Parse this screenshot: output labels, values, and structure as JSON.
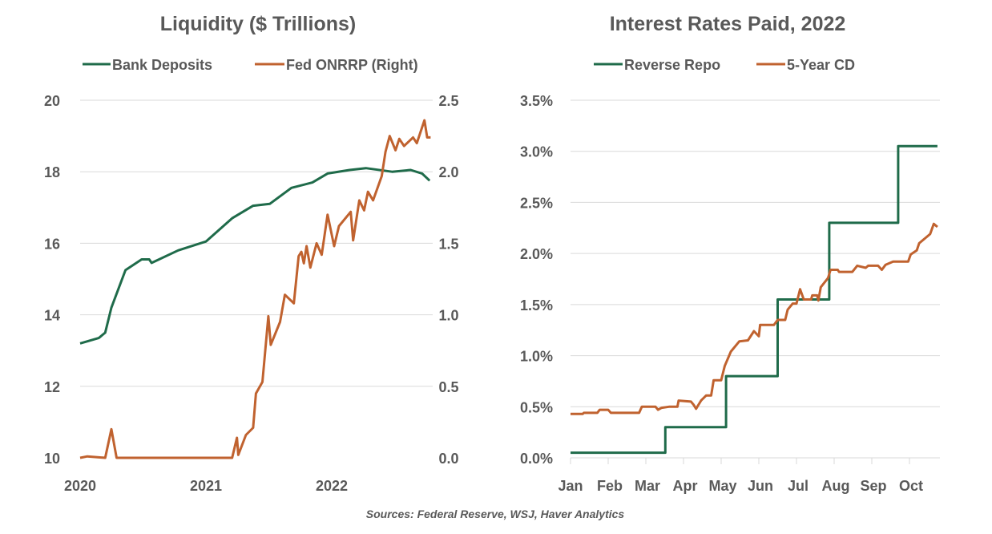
{
  "colors": {
    "green": "#1f6b4a",
    "orange": "#c0622f"
  },
  "source": "Sources: Federal Reserve, WSJ, Haver Analytics",
  "chart_data": [
    {
      "type": "line",
      "title": "Liquidity ($ Trillions)",
      "legend_placement": "top",
      "grid": true,
      "x_ticks": [
        "2020",
        "2021",
        "2022"
      ],
      "y_left": {
        "lim": [
          10,
          20
        ],
        "ticks": [
          "10",
          "12",
          "14",
          "16",
          "18",
          "20"
        ]
      },
      "y_right": {
        "lim": [
          0,
          2.5
        ],
        "ticks": [
          "0.0",
          "0.5",
          "1.0",
          "1.5",
          "2.0",
          "2.5"
        ]
      },
      "series": [
        {
          "name": "Bank Deposits",
          "axis": "left",
          "color": "#1f6b4a",
          "x": [
            "2020-01-01",
            "2020-02-24",
            "2020-03-14",
            "2020-04-01",
            "2020-05-12",
            "2020-06-28",
            "2020-07-20",
            "2020-07-27",
            "2020-10-12",
            "2021-01-01",
            "2021-03-18",
            "2021-05-18",
            "2021-07-05",
            "2021-09-06",
            "2021-11-06",
            "2021-12-20",
            "2022-02-22",
            "2022-04-10",
            "2022-06-25",
            "2022-08-18",
            "2022-09-20",
            "2022-10-12"
          ],
          "y": [
            13.2,
            13.35,
            13.5,
            14.2,
            15.25,
            15.55,
            15.55,
            15.45,
            15.8,
            16.05,
            16.7,
            17.05,
            17.1,
            17.55,
            17.7,
            17.95,
            18.05,
            18.1,
            18.0,
            18.05,
            17.95,
            17.75
          ]
        },
        {
          "name": "Fed ONRRP (Right)",
          "axis": "right",
          "color": "#c0622f",
          "x": [
            "2020-01-01",
            "2020-01-22",
            "2020-03-14",
            "2020-04-01",
            "2020-04-16",
            "2021-03-18",
            "2021-04-01",
            "2021-04-05",
            "2021-04-27",
            "2021-05-18",
            "2021-05-26",
            "2021-06-14",
            "2021-07-01",
            "2021-07-08",
            "2021-08-04",
            "2021-08-18",
            "2021-09-13",
            "2021-09-27",
            "2021-10-05",
            "2021-10-12",
            "2021-10-20",
            "2021-10-31",
            "2021-11-18",
            "2021-12-03",
            "2021-12-20",
            "2022-01-08",
            "2022-01-22",
            "2022-02-25",
            "2022-03-04",
            "2022-03-22",
            "2022-04-05",
            "2022-04-16",
            "2022-05-01",
            "2022-05-26",
            "2022-06-06",
            "2022-06-18",
            "2022-07-05",
            "2022-07-16",
            "2022-07-30",
            "2022-08-25",
            "2022-09-05",
            "2022-09-27",
            "2022-10-05",
            "2022-10-15"
          ],
          "y": [
            0,
            0.01,
            0,
            0.2,
            0,
            0,
            0.14,
            0.02,
            0.16,
            0.21,
            0.45,
            0.53,
            0.99,
            0.79,
            0.95,
            1.14,
            1.08,
            1.41,
            1.44,
            1.36,
            1.48,
            1.33,
            1.5,
            1.42,
            1.7,
            1.48,
            1.62,
            1.72,
            1.52,
            1.8,
            1.73,
            1.86,
            1.8,
            1.97,
            2.14,
            2.25,
            2.15,
            2.23,
            2.18,
            2.24,
            2.2,
            2.36,
            2.24,
            2.24
          ]
        }
      ]
    },
    {
      "type": "line",
      "title": "Interest Rates Paid, 2022",
      "legend_placement": "top",
      "grid": true,
      "x_ticks": [
        "Jan",
        "Feb",
        "Mar",
        "Apr",
        "May",
        "Jun",
        "Jul",
        "Aug",
        "Sep",
        "Oct"
      ],
      "y_left": {
        "lim": [
          0,
          3.5
        ],
        "ticks": [
          "0.0%",
          "0.5%",
          "1.0%",
          "1.5%",
          "2.0%",
          "2.5%",
          "3.0%",
          "3.5%"
        ]
      },
      "series": [
        {
          "name": "Reverse Repo",
          "color": "#1f6b4a",
          "step": true,
          "x": [
            "2022-01-01",
            "2022-03-17",
            "2022-05-05",
            "2022-06-16",
            "2022-07-28",
            "2022-09-22",
            "2022-10-24"
          ],
          "y": [
            0.05,
            0.3,
            0.8,
            1.55,
            2.3,
            3.05,
            3.05
          ]
        },
        {
          "name": "5-Year CD",
          "color": "#c0622f",
          "x": [
            "2022-01-01",
            "2022-01-11",
            "2022-01-12",
            "2022-01-23",
            "2022-01-25",
            "2022-02-01",
            "2022-02-03",
            "2022-02-24",
            "2022-02-26",
            "2022-03-09",
            "2022-03-11",
            "2022-03-14",
            "2022-03-20",
            "2022-03-27",
            "2022-03-28",
            "2022-04-07",
            "2022-04-09",
            "2022-04-11",
            "2022-04-15",
            "2022-04-19",
            "2022-04-23",
            "2022-04-25",
            "2022-05-01",
            "2022-05-04",
            "2022-05-09",
            "2022-05-16",
            "2022-05-23",
            "2022-05-28",
            "2022-06-01",
            "2022-06-02",
            "2022-06-13",
            "2022-06-16",
            "2022-06-22",
            "2022-06-24",
            "2022-06-28",
            "2022-07-01",
            "2022-07-04",
            "2022-07-07",
            "2022-07-13",
            "2022-07-14",
            "2022-07-18",
            "2022-07-19",
            "2022-07-21",
            "2022-07-27",
            "2022-07-29",
            "2022-08-04",
            "2022-08-05",
            "2022-08-16",
            "2022-08-20",
            "2022-08-27",
            "2022-08-29",
            "2022-09-06",
            "2022-09-09",
            "2022-09-12",
            "2022-09-18",
            "2022-09-30",
            "2022-10-02",
            "2022-10-07",
            "2022-10-09",
            "2022-10-14",
            "2022-10-18",
            "2022-10-21",
            "2022-10-24"
          ],
          "y": [
            0.43,
            0.43,
            0.44,
            0.44,
            0.47,
            0.47,
            0.44,
            0.44,
            0.5,
            0.5,
            0.47,
            0.49,
            0.5,
            0.5,
            0.56,
            0.55,
            0.52,
            0.48,
            0.56,
            0.61,
            0.61,
            0.76,
            0.76,
            0.9,
            1.04,
            1.14,
            1.15,
            1.24,
            1.19,
            1.3,
            1.3,
            1.35,
            1.35,
            1.45,
            1.51,
            1.51,
            1.65,
            1.55,
            1.55,
            1.59,
            1.59,
            1.54,
            1.67,
            1.76,
            1.84,
            1.84,
            1.82,
            1.82,
            1.88,
            1.86,
            1.88,
            1.88,
            1.84,
            1.89,
            1.92,
            1.92,
            1.99,
            2.03,
            2.1,
            2.15,
            2.19,
            2.29,
            2.26
          ]
        }
      ]
    }
  ]
}
